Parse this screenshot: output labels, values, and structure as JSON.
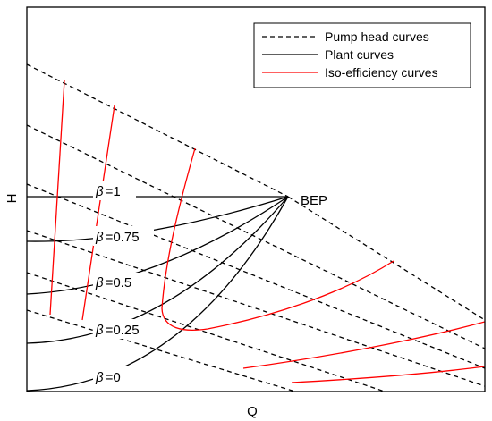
{
  "chart_data": {
    "type": "line",
    "xlabel": "Q",
    "ylabel": "H",
    "grid": false,
    "legend_placement": "top-right",
    "point_label": "BEP",
    "legend": [
      {
        "label": "Pump head curves",
        "style": "dashed",
        "color": "#000000"
      },
      {
        "label": "Plant curves",
        "style": "solid",
        "color": "#000000"
      },
      {
        "label": "Iso-efficiency curves",
        "style": "solid",
        "color": "#ff0000"
      }
    ],
    "beta_symbol": "β",
    "beta_labels": [
      "=1",
      "=0.75",
      "=0.5",
      "=0.25",
      "=0"
    ]
  }
}
